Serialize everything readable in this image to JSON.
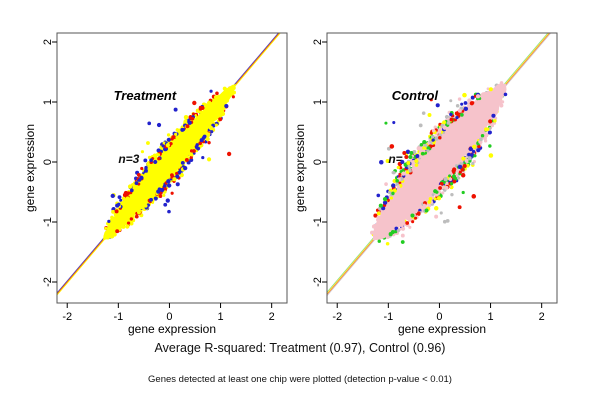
{
  "figure": {
    "background": "#ffffff",
    "footer_primary": "Average R-squared: Treatment (0.97), Control (0.96)",
    "footer_secondary": "Genes detected at least one chip were plotted (detection p-value < 0.01)"
  },
  "chart_data": [
    {
      "type": "scatter",
      "panel": "left",
      "title": "Treatment",
      "title_color": "#909090",
      "annotation": "n=3",
      "annotation_obscured": false,
      "n_chips": 3,
      "xlabel": "gene expression",
      "ylabel": "gene expression",
      "xlim": [
        -2.2,
        2.3
      ],
      "ylim": [
        -2.35,
        2.15
      ],
      "xticks": [
        -2,
        -1,
        0,
        1,
        2
      ],
      "yticks": [
        -2,
        -1,
        0,
        1,
        2
      ],
      "grid": false,
      "identity_line": true,
      "avg_r_squared": 0.97,
      "data_extent": [
        -1.25,
        1.3
      ],
      "core_color": "#ffff00",
      "point_colors": [
        "#2222cc",
        "#ee1100",
        "#ffff00"
      ],
      "line_colors": [
        "#4444cc",
        "#ee5511",
        "#ffee00"
      ],
      "point_count": 620,
      "spread": 0.21,
      "seed": 1337
    },
    {
      "type": "scatter",
      "panel": "right",
      "title": "Control",
      "title_color": "#909090",
      "annotation": "n=",
      "annotation_obscured": true,
      "n_chips": 6,
      "xlabel": "gene expression",
      "ylabel": "gene expression",
      "xlim": [
        -2.2,
        2.3
      ],
      "ylim": [
        -2.35,
        2.15
      ],
      "xticks": [
        -2,
        -1,
        0,
        1,
        2
      ],
      "yticks": [
        -2,
        -1,
        0,
        1,
        2
      ],
      "grid": false,
      "identity_line": true,
      "avg_r_squared": 0.96,
      "data_extent": [
        -1.3,
        1.3
      ],
      "core_color": "#f6c3cb",
      "point_colors": [
        "#ee1100",
        "#22cc22",
        "#2222cc",
        "#ffff00",
        "#bdbdbd",
        "#f6c3cb"
      ],
      "line_colors": [
        "#88dd88",
        "#ffee44",
        "#ff8822",
        "#d0c0c4"
      ],
      "point_count": 880,
      "spread": 0.33,
      "seed": 7
    }
  ]
}
